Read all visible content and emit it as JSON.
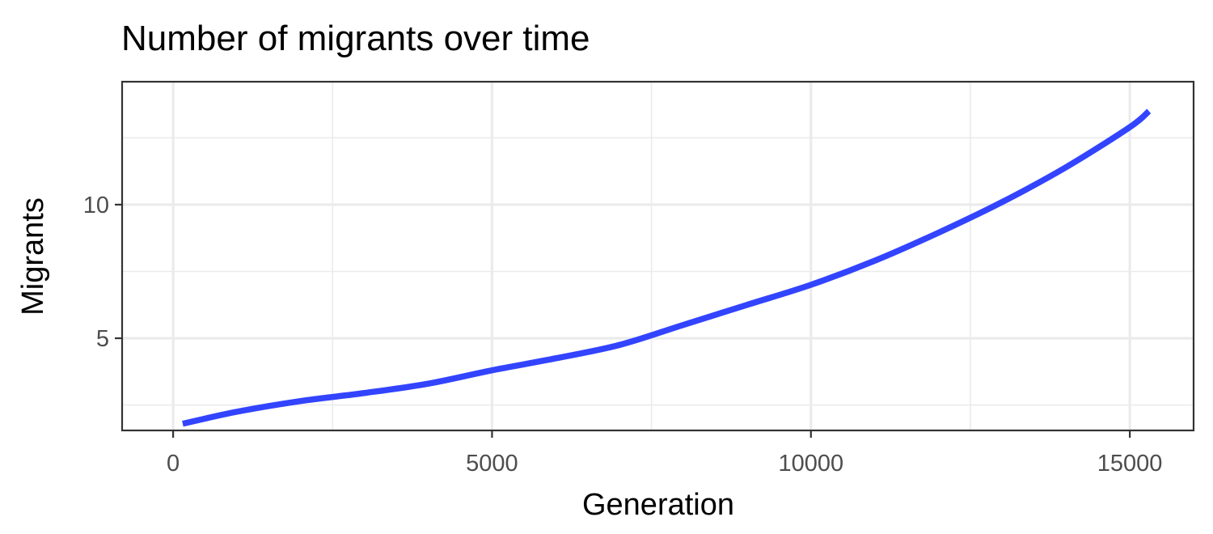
{
  "chart_data": {
    "type": "line",
    "title": "Number of migrants over time",
    "xlabel": "Generation",
    "ylabel": "Migrants",
    "xlim": [
      -800,
      16000
    ],
    "ylim": [
      1.55,
      14.6
    ],
    "x_ticks": [
      0,
      5000,
      10000,
      15000
    ],
    "y_ticks": [
      5,
      10
    ],
    "x_minor_ticks": [
      2500,
      7500,
      12500
    ],
    "y_minor_ticks": [
      2.5,
      7.5,
      12.5
    ],
    "grid": true,
    "legend": "none",
    "line_color": "#3344ff",
    "series": [
      {
        "x": [
          150,
          1000,
          2000,
          3000,
          4000,
          5000,
          6000,
          7000,
          8000,
          9000,
          10000,
          11000,
          12000,
          13000,
          14000,
          15000,
          15300
        ],
        "y": [
          1.8,
          2.25,
          2.65,
          2.95,
          3.3,
          3.8,
          4.25,
          4.75,
          5.5,
          6.25,
          7.0,
          7.9,
          8.95,
          10.1,
          11.4,
          12.9,
          13.5
        ]
      }
    ]
  }
}
